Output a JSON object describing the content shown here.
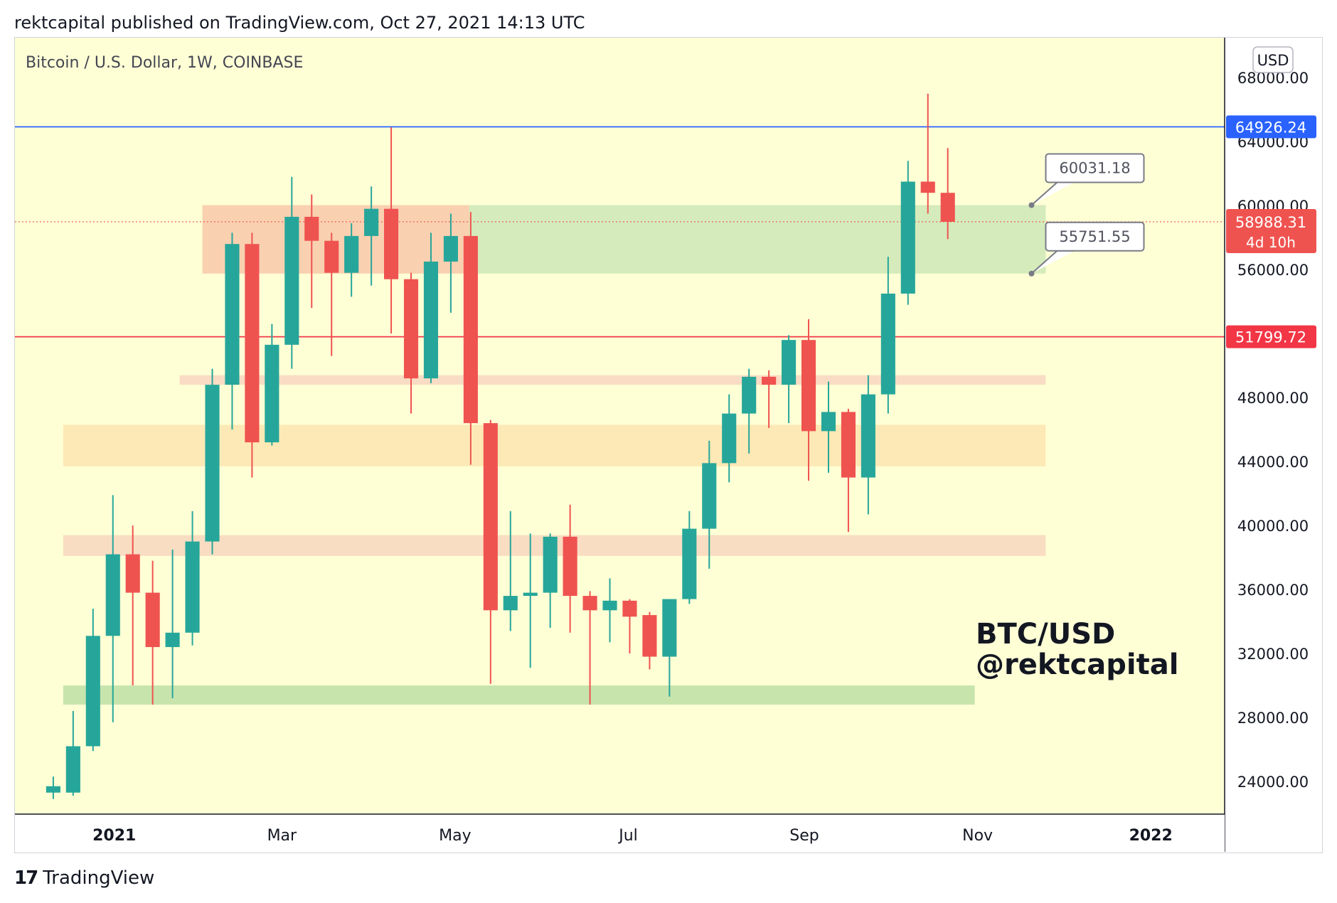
{
  "header": {
    "published": "rektcapital published on TradingView.com, Oct 27, 2021 14:13 UTC"
  },
  "chart_title": "Bitcoin / U.S. Dollar, 1W, COINBASE",
  "currency_button": "USD",
  "watermark": {
    "line1": "BTC/USD",
    "line2": "@rektcapital"
  },
  "footer": {
    "brand": "TradingView",
    "logo_glyph": "17"
  },
  "colors": {
    "background": "#ffffd6",
    "up": "#26a69a",
    "down": "#ef5350",
    "blue_line": "#2962ff",
    "red_line": "#f23645"
  },
  "chart_data": {
    "type": "candlestick",
    "title": "Bitcoin / U.S. Dollar, 1W, COINBASE",
    "ylim": [
      22000,
      70500
    ],
    "y_ticks": [
      "68000.00",
      "64000.00",
      "60000.00",
      "56000.00",
      "48000.00",
      "44000.00",
      "40000.00",
      "36000.00",
      "32000.00",
      "28000.00",
      "24000.00"
    ],
    "x_ticks": [
      {
        "label": "2021",
        "date": "2021-01-01"
      },
      {
        "label": "Mar",
        "date": "2021-03-01"
      },
      {
        "label": "May",
        "date": "2021-05-01"
      },
      {
        "label": "Jul",
        "date": "2021-07-01"
      },
      {
        "label": "Sep",
        "date": "2021-09-01"
      },
      {
        "label": "Nov",
        "date": "2021-11-01"
      },
      {
        "label": "2022",
        "date": "2022-01-01"
      }
    ],
    "x_range": [
      "2020-11-27",
      "2022-01-27"
    ],
    "candles": [
      {
        "date": "2020-12-07",
        "o": 23300,
        "h": 24300,
        "l": 22900,
        "c": 23700
      },
      {
        "date": "2020-12-14",
        "o": 23300,
        "h": 28400,
        "l": 23100,
        "c": 26200
      },
      {
        "date": "2020-12-21",
        "o": 26200,
        "h": 34800,
        "l": 25900,
        "c": 33100
      },
      {
        "date": "2020-12-28",
        "o": 33100,
        "h": 41900,
        "l": 27700,
        "c": 38200
      },
      {
        "date": "2021-01-04",
        "o": 38200,
        "h": 40000,
        "l": 30000,
        "c": 35800
      },
      {
        "date": "2021-01-11",
        "o": 35800,
        "h": 37800,
        "l": 28800,
        "c": 32400
      },
      {
        "date": "2021-01-18",
        "o": 32400,
        "h": 38500,
        "l": 29200,
        "c": 33300
      },
      {
        "date": "2021-01-25",
        "o": 33300,
        "h": 40900,
        "l": 32500,
        "c": 39000
      },
      {
        "date": "2021-02-01",
        "o": 39000,
        "h": 49800,
        "l": 38200,
        "c": 48800
      },
      {
        "date": "2021-02-08",
        "o": 48800,
        "h": 58300,
        "l": 46000,
        "c": 57600
      },
      {
        "date": "2021-02-15",
        "o": 57600,
        "h": 58300,
        "l": 43000,
        "c": 45200
      },
      {
        "date": "2021-02-22",
        "o": 45200,
        "h": 52600,
        "l": 45000,
        "c": 51300
      },
      {
        "date": "2021-03-01",
        "o": 51300,
        "h": 61800,
        "l": 49800,
        "c": 59300
      },
      {
        "date": "2021-03-08",
        "o": 59300,
        "h": 60700,
        "l": 53600,
        "c": 57800
      },
      {
        "date": "2021-03-15",
        "o": 57800,
        "h": 58300,
        "l": 50600,
        "c": 55800
      },
      {
        "date": "2021-03-22",
        "o": 55800,
        "h": 58900,
        "l": 54300,
        "c": 58100
      },
      {
        "date": "2021-03-29",
        "o": 58100,
        "h": 61200,
        "l": 55000,
        "c": 59800
      },
      {
        "date": "2021-04-05",
        "o": 59800,
        "h": 64900,
        "l": 52000,
        "c": 55400
      },
      {
        "date": "2021-04-12",
        "o": 55400,
        "h": 55800,
        "l": 47000,
        "c": 49200
      },
      {
        "date": "2021-04-19",
        "o": 49200,
        "h": 58300,
        "l": 48900,
        "c": 56500
      },
      {
        "date": "2021-04-26",
        "o": 56500,
        "h": 59500,
        "l": 53300,
        "c": 58100
      },
      {
        "date": "2021-05-03",
        "o": 58100,
        "h": 59600,
        "l": 43800,
        "c": 46400
      },
      {
        "date": "2021-05-10",
        "o": 46400,
        "h": 46600,
        "l": 30100,
        "c": 34700
      },
      {
        "date": "2021-05-17",
        "o": 34700,
        "h": 40900,
        "l": 33400,
        "c": 35600
      },
      {
        "date": "2021-05-24",
        "o": 35600,
        "h": 39500,
        "l": 31100,
        "c": 35800
      },
      {
        "date": "2021-05-31",
        "o": 35800,
        "h": 39500,
        "l": 33600,
        "c": 39300
      },
      {
        "date": "2021-06-07",
        "o": 39300,
        "h": 41300,
        "l": 33300,
        "c": 35600
      },
      {
        "date": "2021-06-14",
        "o": 35600,
        "h": 35900,
        "l": 28800,
        "c": 34700
      },
      {
        "date": "2021-06-21",
        "o": 34700,
        "h": 36700,
        "l": 32700,
        "c": 35300
      },
      {
        "date": "2021-06-28",
        "o": 35300,
        "h": 35400,
        "l": 32000,
        "c": 34300
      },
      {
        "date": "2021-07-05",
        "o": 34400,
        "h": 34600,
        "l": 31000,
        "c": 31800
      },
      {
        "date": "2021-07-12",
        "o": 31800,
        "h": 35400,
        "l": 29300,
        "c": 35400
      },
      {
        "date": "2021-07-19",
        "o": 35400,
        "h": 40900,
        "l": 35100,
        "c": 39800
      },
      {
        "date": "2021-07-26",
        "o": 39800,
        "h": 45300,
        "l": 37300,
        "c": 43900
      },
      {
        "date": "2021-08-02",
        "o": 43900,
        "h": 48200,
        "l": 42700,
        "c": 47000
      },
      {
        "date": "2021-08-09",
        "o": 47000,
        "h": 49800,
        "l": 44500,
        "c": 49300
      },
      {
        "date": "2021-08-16",
        "o": 49300,
        "h": 49700,
        "l": 46100,
        "c": 48800
      },
      {
        "date": "2021-08-23",
        "o": 48800,
        "h": 51900,
        "l": 46400,
        "c": 51600
      },
      {
        "date": "2021-08-30",
        "o": 51600,
        "h": 52900,
        "l": 42800,
        "c": 45900
      },
      {
        "date": "2021-09-06",
        "o": 45900,
        "h": 49000,
        "l": 43300,
        "c": 47100
      },
      {
        "date": "2021-09-13",
        "o": 47100,
        "h": 47300,
        "l": 39600,
        "c": 43000
      },
      {
        "date": "2021-09-20",
        "o": 43000,
        "h": 49400,
        "l": 40700,
        "c": 48200
      },
      {
        "date": "2021-09-27",
        "o": 48200,
        "h": 56800,
        "l": 47000,
        "c": 54500
      },
      {
        "date": "2021-10-04",
        "o": 54500,
        "h": 62800,
        "l": 53800,
        "c": 61500
      },
      {
        "date": "2021-10-11",
        "o": 61500,
        "h": 67000,
        "l": 59500,
        "c": 60800
      },
      {
        "date": "2021-10-18",
        "o": 60800,
        "h": 63600,
        "l": 57900,
        "c": 58988
      }
    ],
    "zones": [
      {
        "from": "2021-02-01",
        "to": "2021-05-06",
        "low": 55751.55,
        "high": 60031.18,
        "color": "#f9d0b0"
      },
      {
        "from": "2021-05-06",
        "to": "2021-11-25",
        "low": 55751.55,
        "high": 60031.18,
        "color": "#d5ebbb"
      },
      {
        "from": "2021-01-24",
        "to": "2021-11-25",
        "low": 48800,
        "high": 49400,
        "color": "#f9dcc4"
      },
      {
        "from": "2020-12-14",
        "to": "2021-11-25",
        "low": 43700,
        "high": 46300,
        "color": "#fde9b5"
      },
      {
        "from": "2020-12-14",
        "to": "2021-11-25",
        "low": 38100,
        "high": 39400,
        "color": "#f9ddc2"
      },
      {
        "from": "2020-12-14",
        "to": "2021-10-31",
        "low": 28800,
        "high": 30000,
        "color": "#c7e4ad"
      }
    ],
    "horizontal_lines": [
      {
        "value": 64926.24,
        "label": "64926.24",
        "color": "#2962ff"
      },
      {
        "value": 51799.72,
        "label": "51799.72",
        "color": "#f23645"
      }
    ],
    "current_price": {
      "value": 58988.31,
      "label": "58988.31",
      "countdown": "4d 10h"
    },
    "callouts": [
      {
        "label": "60031.18",
        "value": 60031.18,
        "date": "2021-11-20"
      },
      {
        "label": "55751.55",
        "value": 55751.55,
        "date": "2021-11-20"
      }
    ]
  }
}
